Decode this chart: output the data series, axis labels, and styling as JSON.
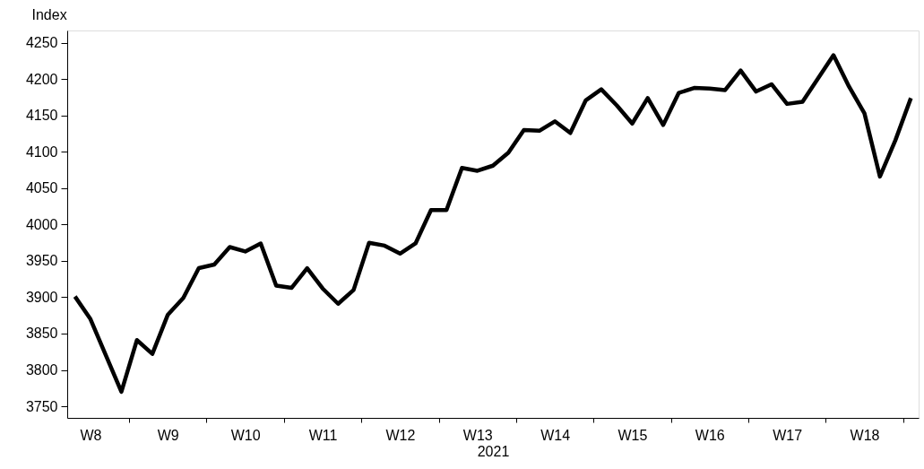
{
  "chart_data": {
    "type": "line",
    "xlabel": "2021",
    "ylabel": "Index",
    "categories": [
      null,
      "W8",
      null,
      null,
      null,
      null,
      "W9",
      null,
      null,
      null,
      null,
      "W10",
      null,
      null,
      null,
      null,
      "W11",
      null,
      null,
      null,
      null,
      "W12",
      null,
      null,
      null,
      null,
      "W13",
      null,
      null,
      null,
      null,
      "W14",
      null,
      null,
      null,
      null,
      "W15",
      null,
      null,
      null,
      null,
      "W16",
      null,
      null,
      null,
      null,
      "W17",
      null,
      null,
      null,
      null,
      "W18",
      null,
      null,
      null
    ],
    "series": [
      {
        "color": "#000000",
        "values": [
          3901,
          3870,
          3820,
          3770,
          3841,
          3822,
          3876,
          3899,
          3940,
          3945,
          3969,
          3963,
          3974,
          3916,
          3913,
          3940,
          3912,
          3891,
          3910,
          3975,
          3971,
          3960,
          3974,
          4020,
          4020,
          4078,
          4074,
          4081,
          4099,
          4130,
          4129,
          4142,
          4126,
          4171,
          4186,
          4164,
          4139,
          4174,
          4137,
          4181,
          4188,
          4187,
          4185,
          4212,
          4183,
          4193,
          4166,
          4169,
          4201,
          4233,
          4190,
          4153,
          4066,
          4116,
          4174
        ]
      }
    ],
    "ylim": [
      3734,
      4267
    ],
    "yticks": [
      3750,
      3800,
      3850,
      3900,
      3950,
      4000,
      4050,
      4100,
      4150,
      4200,
      4250
    ],
    "grid": false,
    "legend": false,
    "marker": "none",
    "line_style": "solid"
  }
}
